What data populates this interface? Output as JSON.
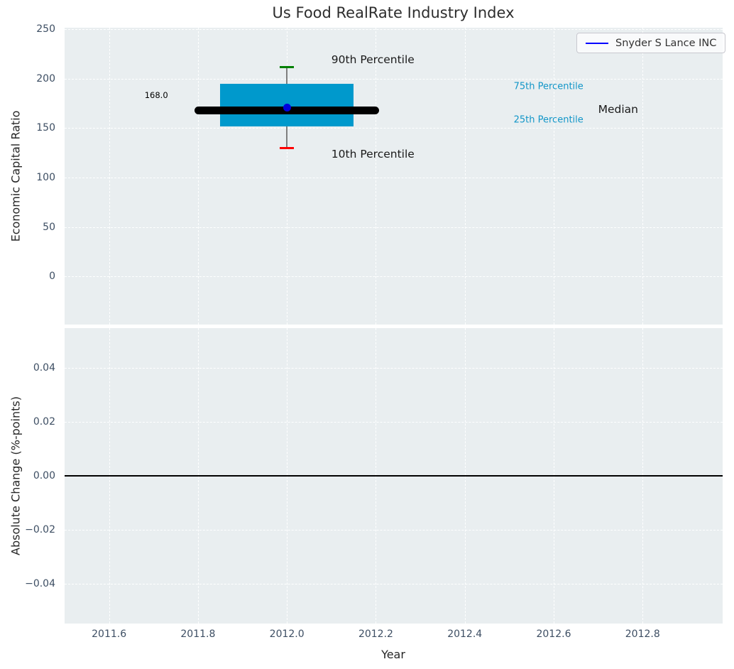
{
  "title": "Us Food RealRate Industry Index",
  "legend": {
    "label": "Snyder S Lance INC",
    "line_color": "#0000ff"
  },
  "style": {
    "plot_background": "#e9eef0",
    "grid_color": "#ffffff",
    "tick_color": "#3d4e63",
    "text_color": "#262626"
  },
  "chart_data": [
    {
      "id": "economic_capital_ratio",
      "type": "boxplot",
      "title": "Us Food RealRate Industry Index",
      "ylabel": "Economic Capital Ratio",
      "xlim": [
        2011.5,
        2012.98
      ],
      "ylim": [
        -48.5,
        251.5
      ],
      "ytick_values": [
        250,
        200,
        150,
        100,
        50,
        0
      ],
      "ytick_labels": [
        "250",
        "200",
        "150",
        "100",
        "50",
        "0"
      ],
      "xtick_values": [
        2011.6,
        2011.8,
        2012.0,
        2012.2,
        2012.4,
        2012.6,
        2012.8
      ],
      "grid": true,
      "legend_position": "upper right",
      "box": {
        "x": 2012.0,
        "p10": 130,
        "q1": 152,
        "median": 168,
        "q3": 195,
        "p90": 212,
        "box_span": [
          2011.85,
          2012.15
        ],
        "median_span": [
          2011.8,
          2012.2
        ],
        "cap_halfwidth": 0.016,
        "box_color": "#0099cc",
        "median_color": "#000000",
        "whisker_color": "#7f7f7f",
        "p90_cap_color": "#008000",
        "p10_cap_color": "#ff0000"
      },
      "company": {
        "name": "Snyder S Lance INC",
        "x": 2012.0,
        "value": 168.0,
        "marker_color": "#0000dd"
      },
      "annotations": [
        {
          "text": "168.0",
          "x": 2011.68,
          "y": 183,
          "color": "#000000",
          "size": 11.5
        },
        {
          "text": "90th Percentile",
          "x": 2012.1,
          "y": 219,
          "color": "#1a1a1a",
          "size": 15.5
        },
        {
          "text": "10th Percentile",
          "x": 2012.1,
          "y": 124,
          "color": "#1a1a1a",
          "size": 15.5
        },
        {
          "text": "75th Percentile",
          "x": 2012.51,
          "y": 192,
          "color": "#1296c8",
          "size": 13
        },
        {
          "text": "25th Percentile",
          "x": 2012.51,
          "y": 158,
          "color": "#1296c8",
          "size": 13
        },
        {
          "text": "Median",
          "x": 2012.7,
          "y": 169,
          "color": "#1a1a1a",
          "size": 15.5
        }
      ]
    },
    {
      "id": "absolute_change",
      "type": "line",
      "ylabel": "Absolute Change (%-points)",
      "xlabel": "Year",
      "xlim": [
        2011.5,
        2012.98
      ],
      "ylim": [
        -0.0548,
        0.0548
      ],
      "ytick_values": [
        0.04,
        0.02,
        0.0,
        -0.02,
        -0.04
      ],
      "ytick_labels": [
        "0.04",
        "0.02",
        "0.00",
        "−0.02",
        "−0.04"
      ],
      "xtick_values": [
        2011.6,
        2011.8,
        2012.0,
        2012.2,
        2012.4,
        2012.6,
        2012.8
      ],
      "xtick_labels": [
        "2011.6",
        "2011.8",
        "2012.0",
        "2012.2",
        "2012.4",
        "2012.6",
        "2012.8"
      ],
      "grid": true,
      "zero_line": {
        "y": 0.0,
        "color": "#000000"
      },
      "series": []
    }
  ]
}
